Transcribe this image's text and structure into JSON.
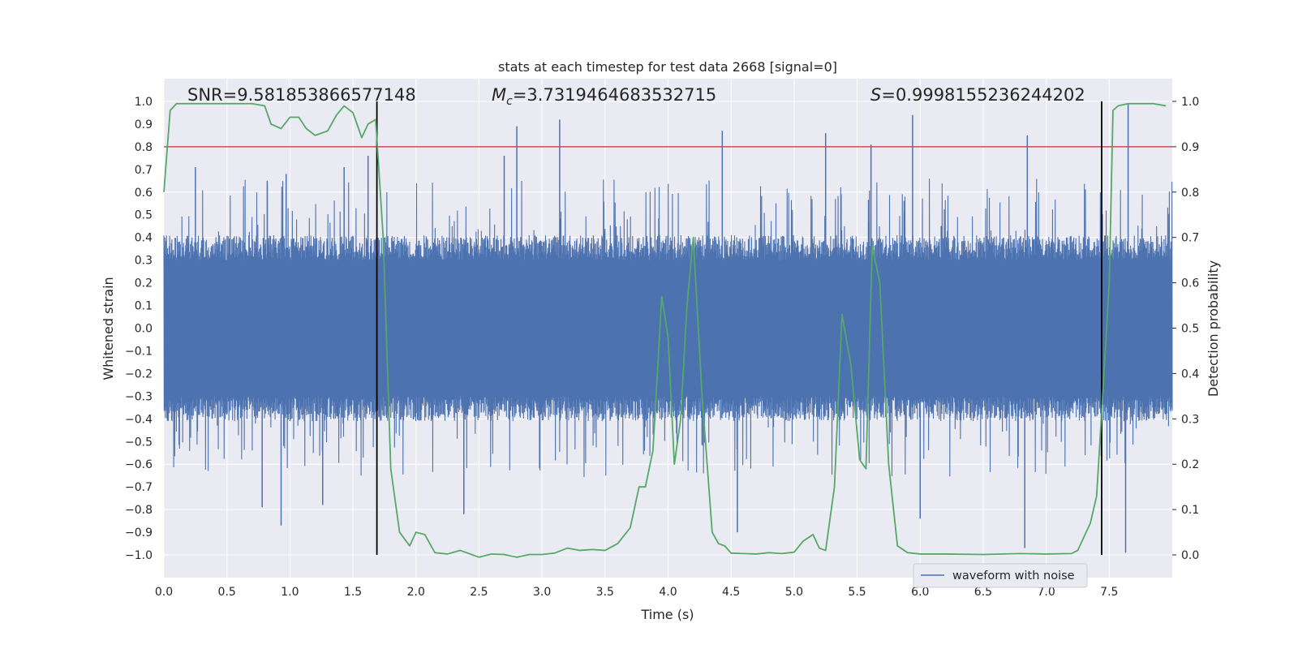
{
  "chart_data": {
    "type": "line",
    "title": "stats at each timestep for test data 2668 [signal=0]",
    "xlabel": "Time (s)",
    "ylabel": "Whitened strain",
    "ylabel_right": "Detection probability",
    "xlim": [
      0.0,
      8.0
    ],
    "ylim": [
      -1.1,
      1.1
    ],
    "ylim_right": [
      -0.05,
      1.05
    ],
    "x_ticks": [
      "0.0",
      "0.5",
      "1.0",
      "1.5",
      "2.0",
      "2.5",
      "3.0",
      "3.5",
      "4.0",
      "4.5",
      "5.0",
      "5.5",
      "6.0",
      "6.5",
      "7.0",
      "7.5"
    ],
    "y_ticks": [
      "−1.0",
      "−0.9",
      "−0.8",
      "−0.7",
      "−0.6",
      "−0.5",
      "−0.4",
      "−0.3",
      "−0.2",
      "−0.1",
      "0.0",
      "0.1",
      "0.2",
      "0.3",
      "0.4",
      "0.5",
      "0.6",
      "0.7",
      "0.8",
      "0.9",
      "1.0"
    ],
    "y_ticks_right": [
      "0.0",
      "0.1",
      "0.2",
      "0.3",
      "0.4",
      "0.5",
      "0.6",
      "0.7",
      "0.8",
      "0.9",
      "1.0"
    ],
    "grid": true,
    "legend_position": "lower-right",
    "annotations": {
      "snr": "SNR=9.581853866577148",
      "mc_prefix": "M",
      "mc_sub": "c",
      "mc_value": "=3.7319464683532715",
      "s_prefix": "S",
      "s_value": "=0.9998155236244202"
    },
    "threshold": 0.9,
    "vertical_lines_x": [
      1.69,
      7.44
    ],
    "series": [
      {
        "name": "waveform with noise",
        "color": "#4c72b0",
        "description": "dense noisy whitened strain, envelope approximately ±0.4 with spikes reaching ±0.99",
        "spikes": [
          [
            0.25,
            0.71
          ],
          [
            0.82,
            0.65
          ],
          [
            0.97,
            0.68
          ],
          [
            1.43,
            0.71
          ],
          [
            1.62,
            0.76
          ],
          [
            2.7,
            0.76
          ],
          [
            2.8,
            0.89
          ],
          [
            3.14,
            0.92
          ],
          [
            4.43,
            0.87
          ],
          [
            5.25,
            0.86
          ],
          [
            5.61,
            0.81
          ],
          [
            5.94,
            0.94
          ],
          [
            6.85,
            0.85
          ],
          [
            7.65,
            0.99
          ],
          [
            0.78,
            -0.79
          ],
          [
            0.93,
            -0.87
          ],
          [
            1.26,
            -0.78
          ],
          [
            2.38,
            -0.82
          ],
          [
            4.55,
            -0.9
          ],
          [
            6.0,
            -0.84
          ],
          [
            6.83,
            -0.97
          ],
          [
            7.63,
            -0.99
          ]
        ]
      },
      {
        "name": "",
        "color": "#55a868",
        "axis": "right",
        "x": [
          0.0,
          0.05,
          0.1,
          0.2,
          0.3,
          0.4,
          0.5,
          0.6,
          0.7,
          0.8,
          0.85,
          0.93,
          1.0,
          1.07,
          1.13,
          1.2,
          1.3,
          1.37,
          1.43,
          1.5,
          1.57,
          1.62,
          1.68,
          1.74,
          1.8,
          1.87,
          1.95,
          2.0,
          2.07,
          2.15,
          2.25,
          2.35,
          2.5,
          2.6,
          2.7,
          2.8,
          2.9,
          3.0,
          3.1,
          3.2,
          3.3,
          3.4,
          3.5,
          3.6,
          3.7,
          3.77,
          3.82,
          3.88,
          3.95,
          4.0,
          4.05,
          4.1,
          4.15,
          4.2,
          4.27,
          4.35,
          4.4,
          4.45,
          4.5,
          4.6,
          4.7,
          4.8,
          4.9,
          5.0,
          5.07,
          5.15,
          5.2,
          5.25,
          5.32,
          5.38,
          5.45,
          5.52,
          5.57,
          5.62,
          5.68,
          5.75,
          5.82,
          5.9,
          6.0,
          6.2,
          6.5,
          6.8,
          7.0,
          7.2,
          7.25,
          7.35,
          7.4,
          7.45,
          7.5,
          7.53,
          7.57,
          7.65,
          7.75,
          7.85,
          7.95
        ],
        "y": [
          0.8,
          0.98,
          0.995,
          0.995,
          0.995,
          0.995,
          0.995,
          0.995,
          0.995,
          0.99,
          0.95,
          0.94,
          0.965,
          0.965,
          0.94,
          0.925,
          0.935,
          0.97,
          0.99,
          0.975,
          0.92,
          0.95,
          0.96,
          0.7,
          0.19,
          0.05,
          0.02,
          0.05,
          0.045,
          0.005,
          0.002,
          0.01,
          -0.005,
          0.002,
          0.001,
          -0.005,
          0.001,
          0.001,
          0.004,
          0.015,
          0.01,
          0.012,
          0.01,
          0.025,
          0.06,
          0.15,
          0.15,
          0.23,
          0.57,
          0.48,
          0.2,
          0.3,
          0.55,
          0.7,
          0.35,
          0.05,
          0.025,
          0.02,
          0.004,
          0.003,
          0.002,
          0.005,
          0.003,
          0.006,
          0.03,
          0.045,
          0.015,
          0.01,
          0.15,
          0.53,
          0.42,
          0.21,
          0.19,
          0.68,
          0.6,
          0.2,
          0.02,
          0.005,
          0.002,
          0.002,
          0.001,
          0.003,
          0.002,
          0.003,
          0.01,
          0.07,
          0.13,
          0.36,
          0.6,
          0.98,
          0.99,
          0.995,
          0.995,
          0.995,
          0.99
        ]
      },
      {
        "name": "",
        "color": "#c44e52",
        "axis": "right",
        "type": "hline",
        "y": 0.9
      }
    ]
  }
}
